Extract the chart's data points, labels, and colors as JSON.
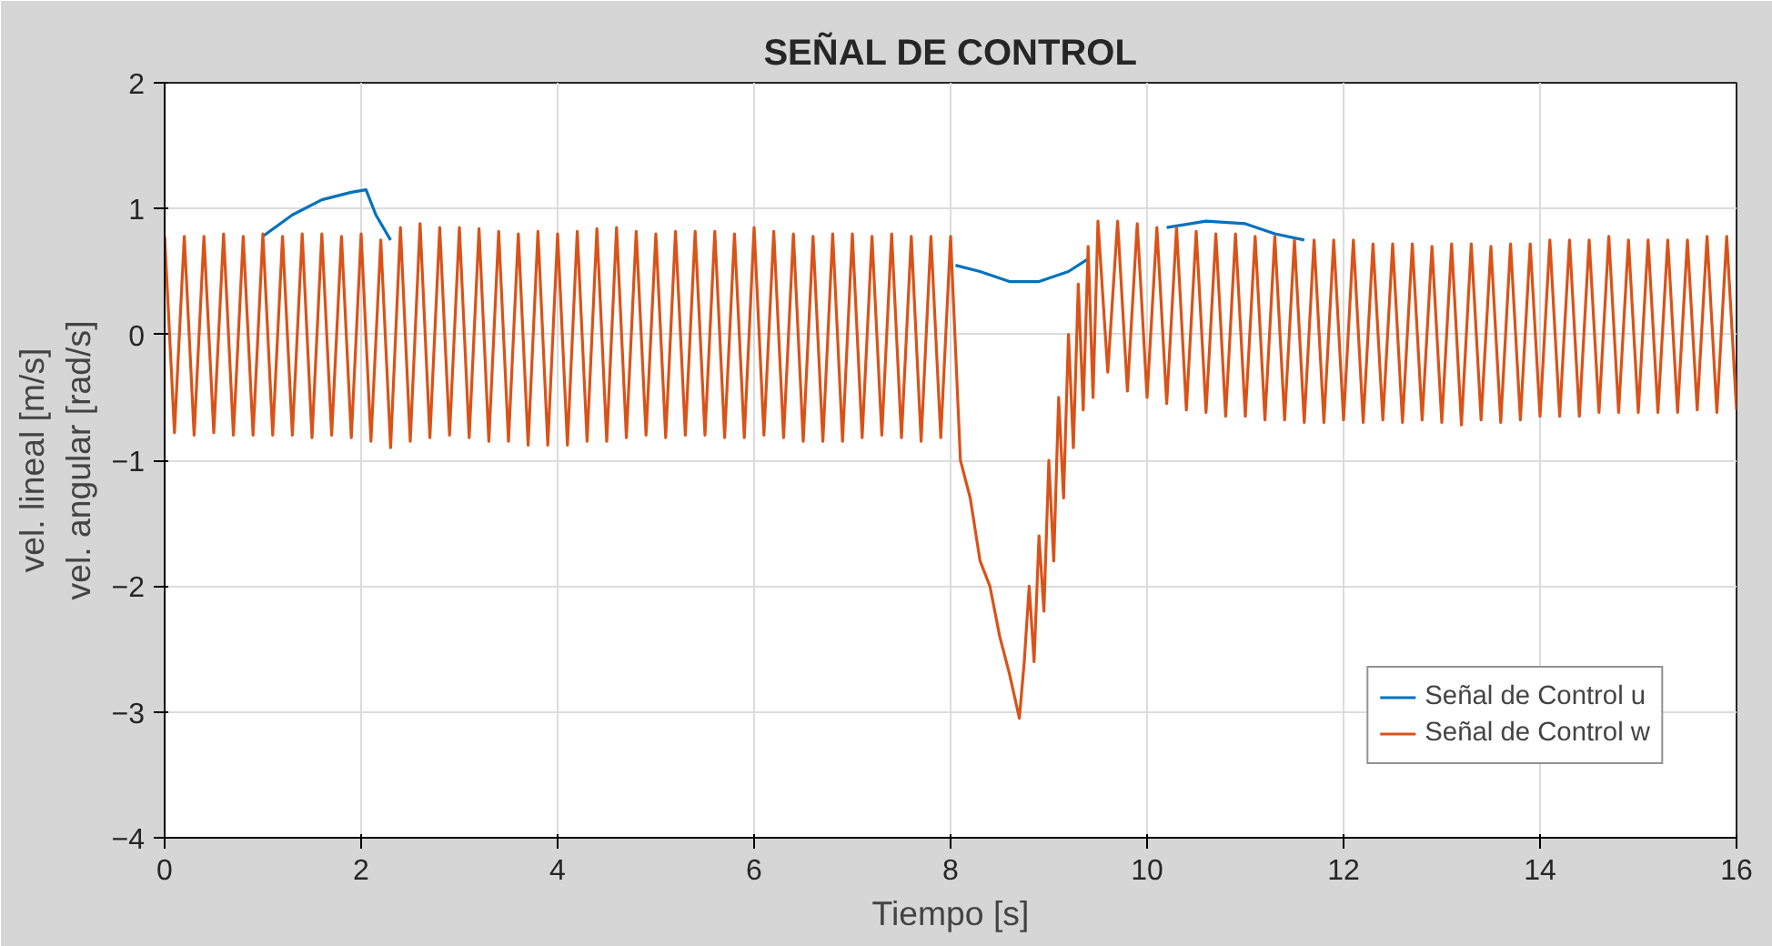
{
  "chart_data": {
    "type": "line",
    "title": "SEÑAL DE CONTROL",
    "xlabel": "Tiempo [s]",
    "ylabel": "vel. lineal [m/s]\nvel. angular [rad/s]",
    "xlim": [
      0,
      16
    ],
    "ylim": [
      -4,
      2
    ],
    "xticks": [
      0,
      2,
      4,
      6,
      8,
      10,
      12,
      14,
      16
    ],
    "yticks": [
      -4,
      -3,
      -2,
      -1,
      0,
      1,
      2
    ],
    "grid": true,
    "legend": "bottom right",
    "line_style": "solid",
    "series": [
      {
        "name": "Señal de Control u",
        "color": "#0072bd",
        "x": [
          1.0,
          1.3,
          1.6,
          1.9,
          2.05,
          2.15,
          2.3,
          2.35,
          8.05,
          8.3,
          8.6,
          8.9,
          9.2,
          9.4,
          9.45,
          10.2,
          10.6,
          11.0,
          11.3,
          11.6
        ],
        "values": [
          0.78,
          0.95,
          1.07,
          1.13,
          1.15,
          0.95,
          0.75,
          null,
          0.55,
          0.5,
          0.42,
          0.42,
          0.5,
          0.6,
          null,
          0.85,
          0.9,
          0.88,
          0.8,
          0.75
        ]
      },
      {
        "name": "Señal de Control w",
        "color": "#d95319",
        "x": [
          0,
          0.1,
          0.2,
          0.3,
          0.4,
          0.5,
          0.6,
          0.7,
          0.8,
          0.9,
          1.0,
          1.1,
          1.2,
          1.3,
          1.4,
          1.5,
          1.6,
          1.7,
          1.8,
          1.9,
          2.0,
          2.1,
          2.2,
          2.3,
          2.4,
          2.5,
          2.6,
          2.7,
          2.8,
          2.9,
          3.0,
          3.1,
          3.2,
          3.3,
          3.4,
          3.5,
          3.6,
          3.7,
          3.8,
          3.9,
          4.0,
          4.1,
          4.2,
          4.3,
          4.4,
          4.5,
          4.6,
          4.7,
          4.8,
          4.9,
          5.0,
          5.1,
          5.2,
          5.3,
          5.4,
          5.5,
          5.6,
          5.7,
          5.8,
          5.9,
          6.0,
          6.1,
          6.2,
          6.3,
          6.4,
          6.5,
          6.6,
          6.7,
          6.8,
          6.9,
          7.0,
          7.1,
          7.2,
          7.3,
          7.4,
          7.5,
          7.6,
          7.7,
          7.8,
          7.9,
          8.0,
          8.1,
          8.2,
          8.3,
          8.4,
          8.5,
          8.6,
          8.7,
          8.75,
          8.8,
          8.85,
          8.9,
          8.95,
          9.0,
          9.05,
          9.1,
          9.15,
          9.2,
          9.25,
          9.3,
          9.35,
          9.4,
          9.45,
          9.5,
          9.6,
          9.7,
          9.8,
          9.9,
          10.0,
          10.1,
          10.2,
          10.3,
          10.4,
          10.5,
          10.6,
          10.7,
          10.8,
          10.9,
          11.0,
          11.1,
          11.2,
          11.3,
          11.4,
          11.5,
          11.6,
          11.7,
          11.8,
          11.9,
          12.0,
          12.1,
          12.2,
          12.3,
          12.4,
          12.5,
          12.6,
          12.7,
          12.8,
          12.9,
          13.0,
          13.1,
          13.2,
          13.3,
          13.4,
          13.5,
          13.6,
          13.7,
          13.8,
          13.9,
          14.0,
          14.1,
          14.2,
          14.3,
          14.4,
          14.5,
          14.6,
          14.7,
          14.8,
          14.9,
          15.0,
          15.1,
          15.2,
          15.3,
          15.4,
          15.5,
          15.6,
          15.7,
          15.8,
          15.9,
          16.0
        ],
        "values": [
          0.78,
          -0.78,
          0.78,
          -0.8,
          0.78,
          -0.78,
          0.8,
          -0.8,
          0.78,
          -0.8,
          0.8,
          -0.8,
          0.78,
          -0.8,
          0.8,
          -0.82,
          0.8,
          -0.8,
          0.78,
          -0.82,
          0.8,
          -0.85,
          0.75,
          -0.9,
          0.85,
          -0.85,
          0.88,
          -0.82,
          0.85,
          -0.8,
          0.85,
          -0.82,
          0.84,
          -0.85,
          0.82,
          -0.85,
          0.8,
          -0.88,
          0.82,
          -0.88,
          0.8,
          -0.88,
          0.82,
          -0.85,
          0.84,
          -0.85,
          0.85,
          -0.82,
          0.82,
          -0.8,
          0.8,
          -0.82,
          0.82,
          -0.8,
          0.82,
          -0.8,
          0.82,
          -0.82,
          0.8,
          -0.82,
          0.85,
          -0.8,
          0.82,
          -0.82,
          0.8,
          -0.85,
          0.78,
          -0.85,
          0.8,
          -0.85,
          0.8,
          -0.82,
          0.78,
          -0.8,
          0.8,
          -0.82,
          0.78,
          -0.85,
          0.78,
          -0.82,
          0.78,
          -1.0,
          -1.3,
          -1.8,
          -2.0,
          -2.4,
          -2.7,
          -3.05,
          -2.6,
          -2.0,
          -2.6,
          -1.6,
          -2.2,
          -1.0,
          -1.8,
          -0.5,
          -1.3,
          0.0,
          -0.9,
          0.4,
          -0.6,
          0.7,
          -0.5,
          0.9,
          -0.3,
          0.9,
          -0.45,
          0.88,
          -0.5,
          0.85,
          -0.55,
          0.85,
          -0.6,
          0.82,
          -0.62,
          0.8,
          -0.65,
          0.8,
          -0.65,
          0.78,
          -0.68,
          0.78,
          -0.68,
          0.75,
          -0.7,
          0.75,
          -0.7,
          0.75,
          -0.68,
          0.75,
          -0.7,
          0.72,
          -0.68,
          0.72,
          -0.7,
          0.72,
          -0.68,
          0.7,
          -0.7,
          0.72,
          -0.72,
          0.72,
          -0.68,
          0.7,
          -0.7,
          0.72,
          -0.68,
          0.72,
          -0.65,
          0.75,
          -0.65,
          0.75,
          -0.65,
          0.75,
          -0.62,
          0.78,
          -0.62,
          0.75,
          -0.62,
          0.75,
          -0.62,
          0.75,
          -0.62,
          0.75,
          -0.6,
          0.78,
          -0.62,
          0.78,
          -0.6
        ]
      }
    ]
  }
}
